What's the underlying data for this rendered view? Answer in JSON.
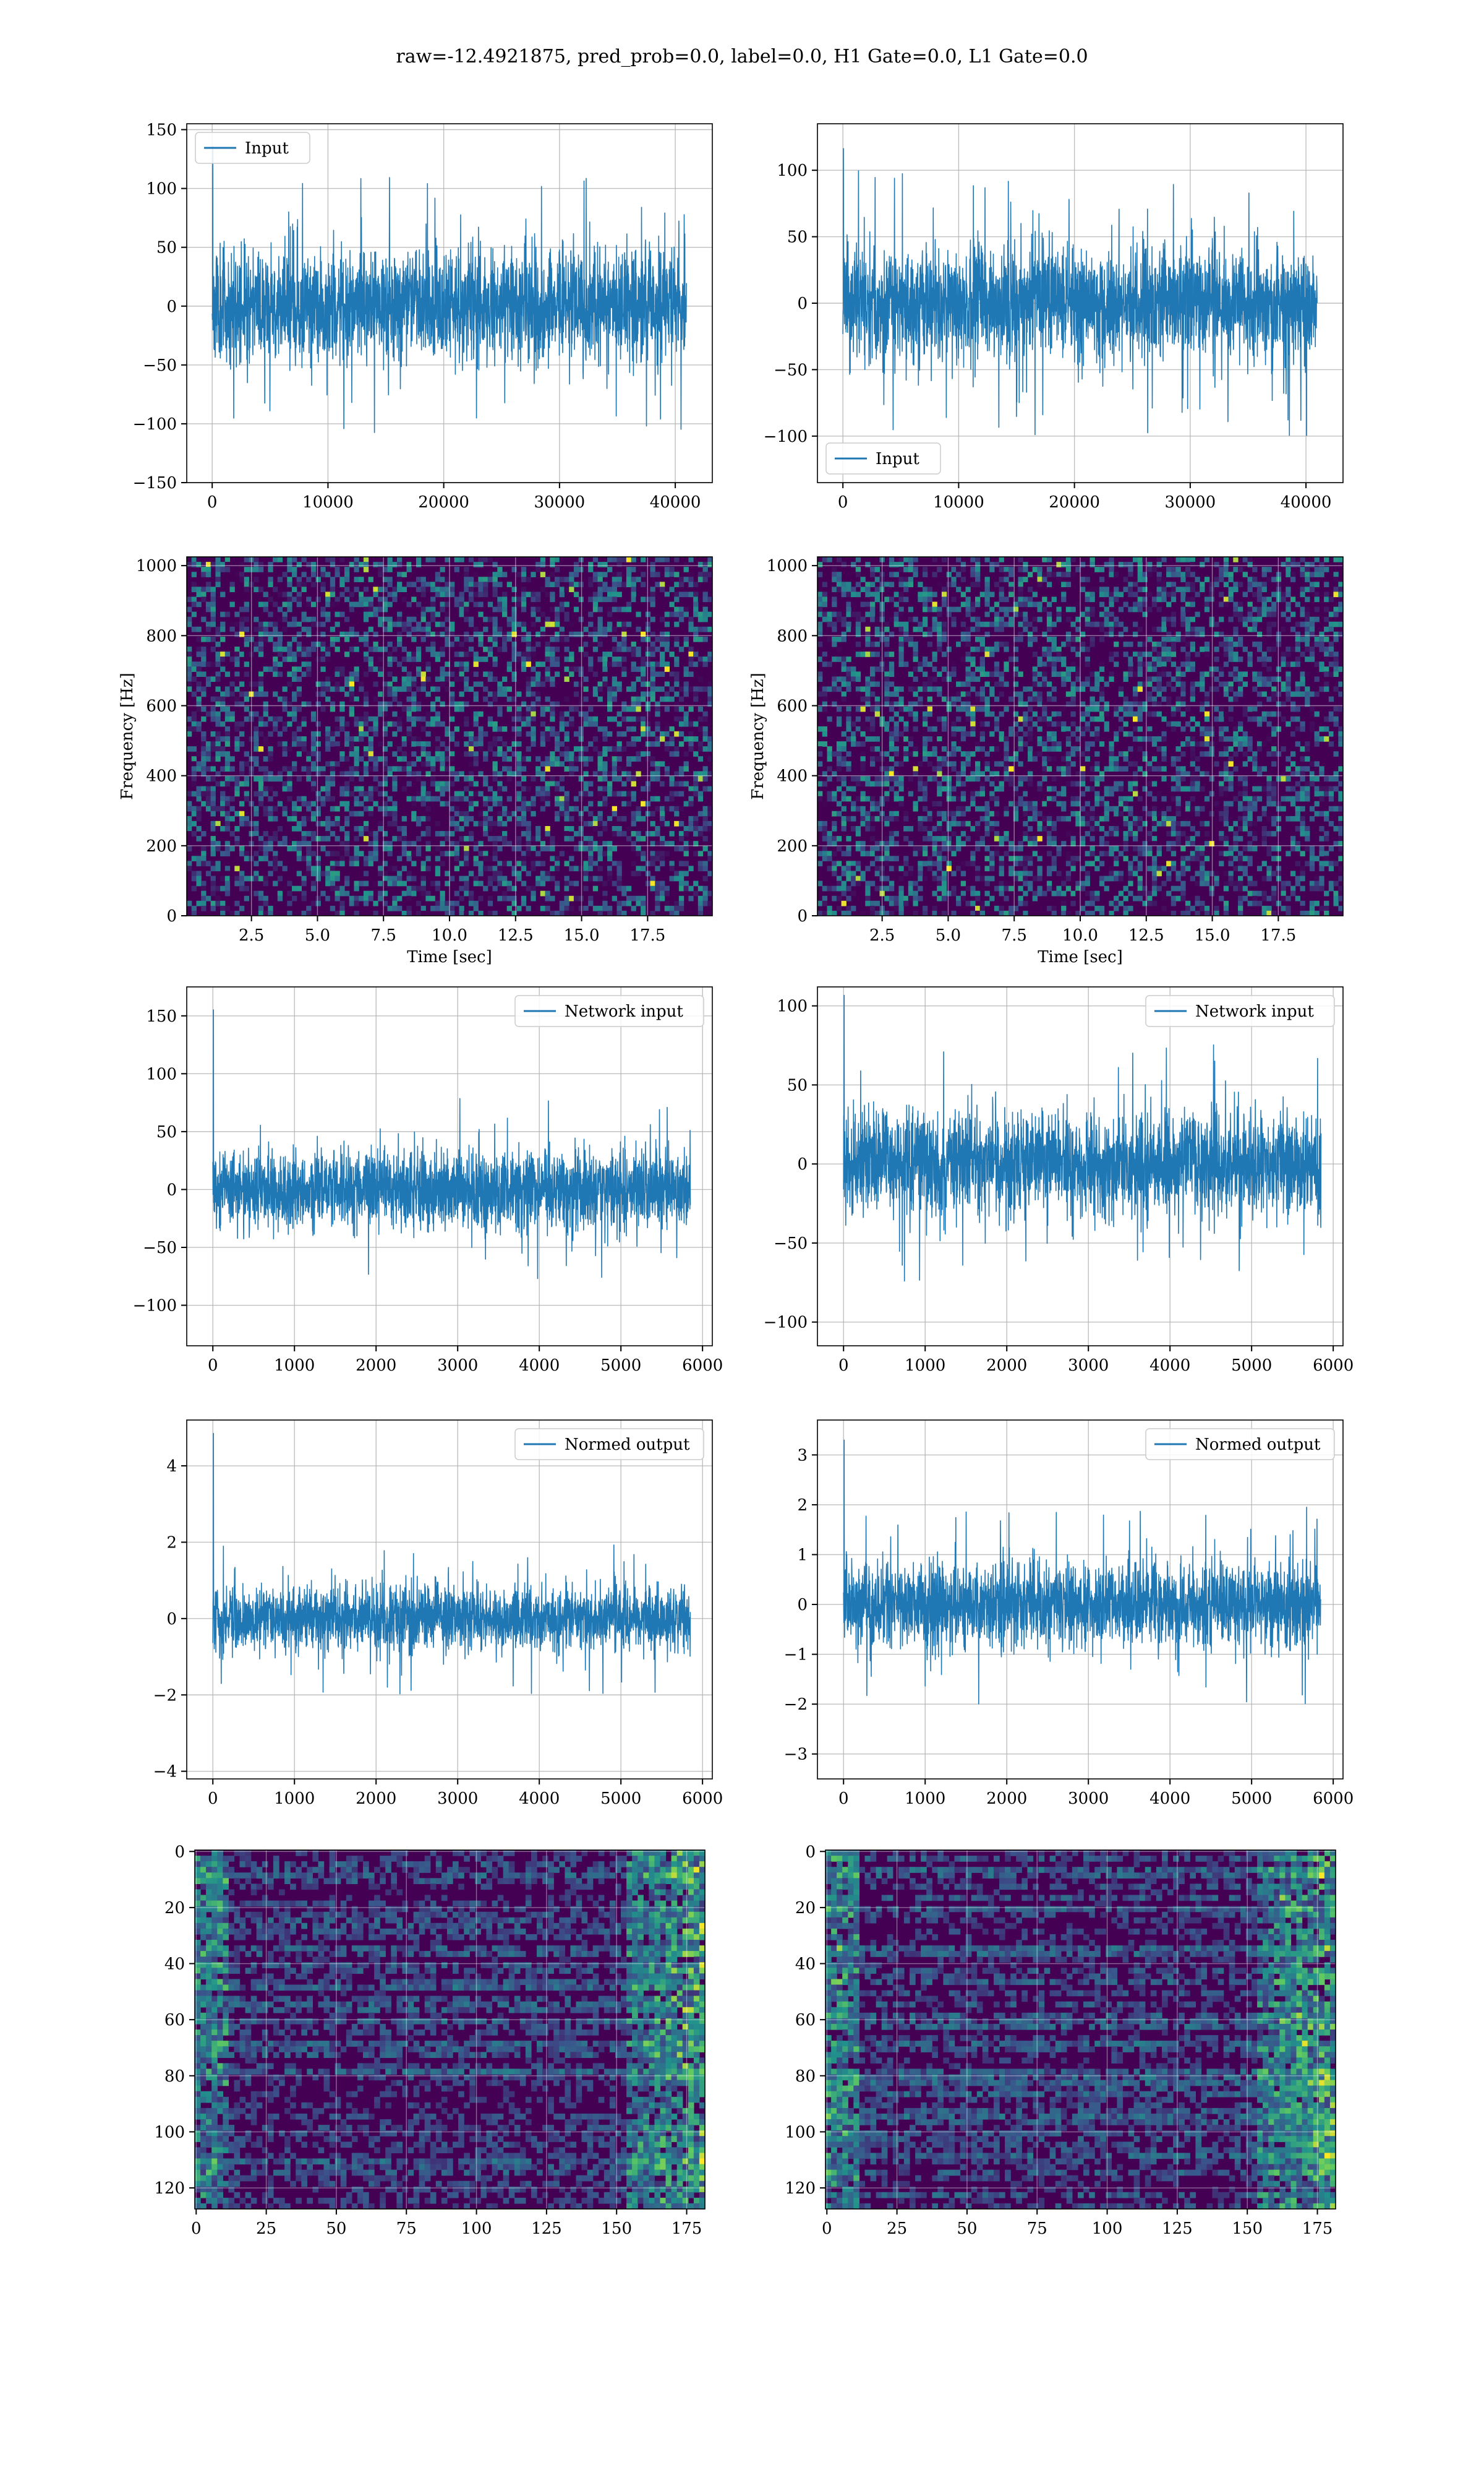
{
  "suptitle": "raw=-12.4921875, pred_prob=0.0, label=0.0, H1 Gate=0.0, L1 Gate=0.0",
  "colors": {
    "series": "#1f77b4",
    "grid": "#b0b0b0",
    "heat_low": "#440154",
    "heat_mid": "#3b528b",
    "heat_teal": "#21918c",
    "heat_green": "#5ec962",
    "heat_high": "#fde725"
  },
  "chart_data": [
    {
      "id": "p1",
      "type": "line",
      "grid": true,
      "series": [
        {
          "name": "Input",
          "x_range": [
            0,
            40960
          ],
          "amplitude": 55,
          "spike": 140,
          "seed": 11
        }
      ],
      "xlim": [
        -2200,
        43200
      ],
      "ylim": [
        -150,
        155
      ],
      "xticks": [
        0,
        10000,
        20000,
        30000,
        40000
      ],
      "xtick_labels": [
        "0",
        "10000",
        "20000",
        "30000",
        "40000"
      ],
      "yticks": [
        -150,
        -100,
        -50,
        0,
        50,
        100,
        150
      ],
      "ytick_labels": [
        "−150",
        "−100",
        "−50",
        "0",
        "50",
        "100",
        "150"
      ],
      "legend_loc": "upper left",
      "xlabel": "",
      "ylabel": ""
    },
    {
      "id": "p2",
      "type": "line",
      "grid": true,
      "series": [
        {
          "name": "Input",
          "x_range": [
            0,
            40960
          ],
          "amplitude": 50,
          "spike": 120,
          "seed": 23
        }
      ],
      "xlim": [
        -2200,
        43200
      ],
      "ylim": [
        -135,
        135
      ],
      "xticks": [
        0,
        10000,
        20000,
        30000,
        40000
      ],
      "xtick_labels": [
        "0",
        "10000",
        "20000",
        "30000",
        "40000"
      ],
      "yticks": [
        -100,
        -50,
        0,
        50,
        100
      ],
      "ytick_labels": [
        "−100",
        "−50",
        "0",
        "50",
        "100"
      ],
      "legend_loc": "lower left",
      "xlabel": "",
      "ylabel": ""
    },
    {
      "id": "p3",
      "type": "heatmap",
      "grid": true,
      "xlim": [
        0.05,
        19.95
      ],
      "ylim": [
        0,
        1025
      ],
      "xticks": [
        2.5,
        5.0,
        7.5,
        10.0,
        12.5,
        15.0,
        17.5
      ],
      "xtick_labels": [
        "2.5",
        "5.0",
        "7.5",
        "10.0",
        "12.5",
        "15.0",
        "17.5"
      ],
      "yticks": [
        0,
        200,
        400,
        600,
        800,
        1000
      ],
      "ytick_labels": [
        "0",
        "200",
        "400",
        "600",
        "800",
        "1000"
      ],
      "xlabel": "Time [sec]",
      "ylabel": "Frequency [Hz]",
      "seed": 37
    },
    {
      "id": "p4",
      "type": "heatmap",
      "grid": true,
      "xlim": [
        0.05,
        19.95
      ],
      "ylim": [
        0,
        1025
      ],
      "xticks": [
        2.5,
        5.0,
        7.5,
        10.0,
        12.5,
        15.0,
        17.5
      ],
      "xtick_labels": [
        "2.5",
        "5.0",
        "7.5",
        "10.0",
        "12.5",
        "15.0",
        "17.5"
      ],
      "yticks": [
        0,
        200,
        400,
        600,
        800,
        1000
      ],
      "ytick_labels": [
        "0",
        "200",
        "400",
        "600",
        "800",
        "1000"
      ],
      "xlabel": "Time [sec]",
      "ylabel": "Frequency [Hz]",
      "seed": 41
    },
    {
      "id": "p5",
      "type": "line",
      "grid": true,
      "series": [
        {
          "name": "Network input",
          "x_range": [
            0,
            5850
          ],
          "amplitude": 40,
          "spike": 160,
          "seed": 53
        }
      ],
      "xlim": [
        -320,
        6120
      ],
      "ylim": [
        -135,
        175
      ],
      "xticks": [
        0,
        1000,
        2000,
        3000,
        4000,
        5000,
        6000
      ],
      "xtick_labels": [
        "0",
        "1000",
        "2000",
        "3000",
        "4000",
        "5000",
        "6000"
      ],
      "yticks": [
        -100,
        -50,
        0,
        50,
        100,
        150
      ],
      "ytick_labels": [
        "−100",
        "−50",
        "0",
        "50",
        "100",
        "150"
      ],
      "legend_loc": "upper right",
      "xlabel": "",
      "ylabel": ""
    },
    {
      "id": "p6",
      "type": "line",
      "grid": true,
      "series": [
        {
          "name": "Network input",
          "x_range": [
            0,
            5850
          ],
          "amplitude": 38,
          "spike": 110,
          "seed": 67
        }
      ],
      "xlim": [
        -320,
        6120
      ],
      "ylim": [
        -115,
        112
      ],
      "xticks": [
        0,
        1000,
        2000,
        3000,
        4000,
        5000,
        6000
      ],
      "xtick_labels": [
        "0",
        "1000",
        "2000",
        "3000",
        "4000",
        "5000",
        "6000"
      ],
      "yticks": [
        -100,
        -50,
        0,
        50,
        100
      ],
      "ytick_labels": [
        "−100",
        "−50",
        "0",
        "50",
        "100"
      ],
      "legend_loc": "upper right",
      "xlabel": "",
      "ylabel": ""
    },
    {
      "id": "p7",
      "type": "line",
      "grid": true,
      "series": [
        {
          "name": "Normed output",
          "x_range": [
            0,
            5850
          ],
          "amplitude": 1.0,
          "spike": 5.0,
          "seed": 79
        }
      ],
      "xlim": [
        -320,
        6120
      ],
      "ylim": [
        -4.2,
        5.2
      ],
      "xticks": [
        0,
        1000,
        2000,
        3000,
        4000,
        5000,
        6000
      ],
      "xtick_labels": [
        "0",
        "1000",
        "2000",
        "3000",
        "4000",
        "5000",
        "6000"
      ],
      "yticks": [
        -4,
        -2,
        0,
        2,
        4
      ],
      "ytick_labels": [
        "−4",
        "−2",
        "0",
        "2",
        "4"
      ],
      "legend_loc": "upper right",
      "xlabel": "",
      "ylabel": ""
    },
    {
      "id": "p8",
      "type": "line",
      "grid": true,
      "series": [
        {
          "name": "Normed output",
          "x_range": [
            0,
            5850
          ],
          "amplitude": 1.0,
          "spike": 3.4,
          "seed": 83
        }
      ],
      "xlim": [
        -320,
        6120
      ],
      "ylim": [
        -3.5,
        3.7
      ],
      "xticks": [
        0,
        1000,
        2000,
        3000,
        4000,
        5000,
        6000
      ],
      "xtick_labels": [
        "0",
        "1000",
        "2000",
        "3000",
        "4000",
        "5000",
        "6000"
      ],
      "yticks": [
        -3,
        -2,
        -1,
        0,
        1,
        2,
        3
      ],
      "ytick_labels": [
        "−3",
        "−2",
        "−1",
        "0",
        "1",
        "2",
        "3"
      ],
      "legend_loc": "upper right",
      "xlabel": "",
      "ylabel": ""
    },
    {
      "id": "p9",
      "type": "heatmap",
      "grid": true,
      "xlim": [
        -0.5,
        181.5
      ],
      "ylim": [
        127.5,
        -0.5
      ],
      "xticks": [
        0,
        25,
        50,
        75,
        100,
        125,
        150,
        175
      ],
      "xtick_labels": [
        "0",
        "25",
        "50",
        "75",
        "100",
        "125",
        "150",
        "175"
      ],
      "yticks": [
        0,
        20,
        40,
        60,
        80,
        100,
        120
      ],
      "ytick_labels": [
        "0",
        "20",
        "40",
        "60",
        "80",
        "100",
        "120"
      ],
      "xlabel": "",
      "ylabel": "",
      "seed": 97
    },
    {
      "id": "p10",
      "type": "heatmap",
      "grid": true,
      "xlim": [
        -0.5,
        181.5
      ],
      "ylim": [
        127.5,
        -0.5
      ],
      "xticks": [
        0,
        25,
        50,
        75,
        100,
        125,
        150,
        175
      ],
      "xtick_labels": [
        "0",
        "25",
        "50",
        "75",
        "100",
        "125",
        "150",
        "175"
      ],
      "yticks": [
        0,
        20,
        40,
        60,
        80,
        100,
        120
      ],
      "ytick_labels": [
        "0",
        "20",
        "40",
        "60",
        "80",
        "100",
        "120"
      ],
      "xlabel": "",
      "ylabel": "",
      "seed": 101
    }
  ]
}
